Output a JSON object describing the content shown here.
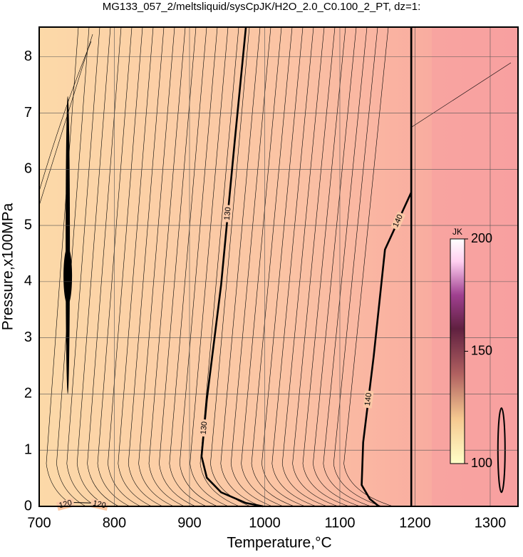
{
  "chart_data": {
    "type": "contour",
    "title": "MG133_057_2/meltsliquid/sysCpJK/H2O_2.0_C0.100_2_PT, dz=1:",
    "x_label": "Temperature,°C",
    "y_label": "Pressure,x100MPa",
    "xlim": [
      700,
      1337
    ],
    "ylim": [
      0,
      8.53
    ],
    "xticks": [
      700,
      800,
      900,
      1000,
      1100,
      1200,
      1300
    ],
    "yticks": [
      0,
      1,
      2,
      3,
      4,
      5,
      6,
      7,
      8
    ],
    "grid": true,
    "contours": [
      {
        "level": "130",
        "x": [
          975,
          960,
          942,
          923,
          916,
          923,
          942,
          975,
          998
        ],
        "y": [
          8.53,
          6.48,
          3.94,
          1.9,
          0.89,
          0.51,
          0.25,
          0.06,
          0
        ]
      },
      {
        "level": "140",
        "x": [
          1195,
          1195,
          1160,
          1145,
          1131,
          1129,
          1140,
          1152
        ],
        "y": [
          8.53,
          5.59,
          4.57,
          2.67,
          1.14,
          0.38,
          0.13,
          0
        ]
      },
      {
        "level": "120",
        "x": [
          725,
          745,
          770,
          790
        ],
        "y": [
          0,
          0.07,
          0.06,
          0
        ]
      }
    ],
    "colorbar": {
      "label": "JK",
      "lim": [
        100,
        200
      ],
      "ticks": [
        100,
        150,
        200
      ]
    }
  }
}
